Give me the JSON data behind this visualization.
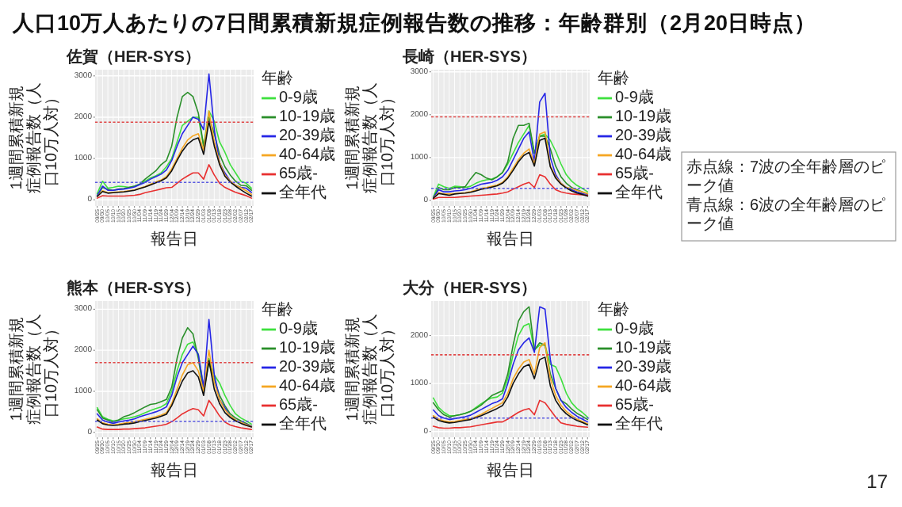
{
  "chart_data": [
    {
      "type": "line",
      "title": "佐賀（HER-SYS）",
      "xlabel": "報告日",
      "ylabel": "1週間累積新規症例報告数（人口10万人対）",
      "legend_title": "年齢",
      "legend": "right",
      "grid": true,
      "categories": [
        "09/25",
        "09/30",
        "10/05",
        "10/10",
        "10/15",
        "10/20",
        "10/25",
        "10/30",
        "11/04",
        "11/09",
        "11/14",
        "11/19",
        "11/24",
        "11/29",
        "12/04",
        "12/09",
        "12/14",
        "12/19",
        "12/24",
        "12/29",
        "01/03",
        "01/08",
        "01/13",
        "01/18",
        "01/23",
        "01/28",
        "02/02",
        "02/07",
        "02/12",
        "02/17"
      ],
      "ylim": [
        -150,
        3150
      ],
      "yticks": [
        0,
        1000,
        2000,
        3000
      ],
      "ref_lines": [
        {
          "axis": "y",
          "value": 1880,
          "color": "#e04848",
          "line_style": "dotted"
        },
        {
          "axis": "y",
          "value": 420,
          "color": "#5a5ae0",
          "line_style": "dotted"
        }
      ],
      "series": [
        {
          "name": "0-9歳",
          "color": "#3ee03e",
          "values": [
            150,
            450,
            280,
            300,
            330,
            320,
            300,
            330,
            380,
            450,
            530,
            580,
            650,
            800,
            1000,
            1400,
            1800,
            1900,
            2000,
            2000,
            1300,
            2150,
            1900,
            1400,
            1150,
            850,
            650,
            450,
            400,
            280
          ]
        },
        {
          "name": "10-19歳",
          "color": "#2a8f2a",
          "values": [
            100,
            300,
            250,
            230,
            260,
            270,
            300,
            330,
            380,
            500,
            600,
            700,
            850,
            950,
            1300,
            2000,
            2500,
            2600,
            2500,
            2100,
            1300,
            2000,
            1600,
            1100,
            800,
            600,
            450,
            350,
            340,
            230
          ]
        },
        {
          "name": "20-39歳",
          "color": "#2626e6",
          "values": [
            100,
            330,
            230,
            230,
            250,
            260,
            280,
            310,
            370,
            420,
            500,
            560,
            620,
            720,
            950,
            1300,
            1600,
            1800,
            2000,
            1950,
            1700,
            3050,
            1700,
            900,
            650,
            450,
            350,
            300,
            280,
            180
          ]
        },
        {
          "name": "40-64歳",
          "color": "#f5a623",
          "values": [
            80,
            220,
            170,
            180,
            190,
            200,
            220,
            240,
            280,
            320,
            380,
            430,
            480,
            560,
            750,
            1000,
            1250,
            1450,
            1550,
            1600,
            1200,
            2150,
            1400,
            900,
            600,
            450,
            350,
            290,
            220,
            130
          ]
        },
        {
          "name": "65歳-",
          "color": "#e83030",
          "values": [
            40,
            100,
            90,
            90,
            90,
            90,
            100,
            110,
            130,
            170,
            200,
            230,
            260,
            290,
            300,
            400,
            500,
            580,
            650,
            650,
            500,
            850,
            600,
            400,
            300,
            240,
            180,
            140,
            100,
            40
          ]
        },
        {
          "name": "全年代",
          "color": "#111111",
          "values": [
            80,
            200,
            160,
            170,
            180,
            190,
            210,
            230,
            270,
            310,
            360,
            410,
            460,
            530,
            700,
            950,
            1180,
            1350,
            1450,
            1500,
            1100,
            1900,
            1300,
            850,
            570,
            430,
            330,
            240,
            160,
            90
          ]
        }
      ]
    },
    {
      "type": "line",
      "title": "長崎（HER-SYS）",
      "xlabel": "報告日",
      "ylabel": "1週間累積新規症例報告数（人口10万人対）",
      "legend_title": "年齢",
      "legend": "right",
      "grid": true,
      "categories": [
        "09/25",
        "09/30",
        "10/05",
        "10/10",
        "10/15",
        "10/20",
        "10/25",
        "10/30",
        "11/04",
        "11/09",
        "11/14",
        "11/19",
        "11/24",
        "11/29",
        "12/04",
        "12/09",
        "12/14",
        "12/19",
        "12/24",
        "12/29",
        "01/03",
        "01/08",
        "01/13",
        "01/18",
        "01/23",
        "01/28",
        "02/02",
        "02/07",
        "02/12",
        "02/17"
      ],
      "ylim": [
        -130,
        3050
      ],
      "yticks": [
        0,
        1000,
        2000,
        3000
      ],
      "ref_lines": [
        {
          "axis": "y",
          "value": 1950,
          "color": "#e04848",
          "line_style": "dotted"
        },
        {
          "axis": "y",
          "value": 280,
          "color": "#5a5ae0",
          "line_style": "dotted"
        }
      ],
      "series": [
        {
          "name": "0-9歳",
          "color": "#3ee03e",
          "values": [
            80,
            380,
            320,
            280,
            330,
            320,
            300,
            330,
            400,
            450,
            480,
            500,
            550,
            650,
            850,
            1100,
            1350,
            1550,
            1750,
            1100,
            1500,
            1550,
            1400,
            1150,
            850,
            600,
            450,
            350,
            280,
            200
          ]
        },
        {
          "name": "10-19歳",
          "color": "#2a8f2a",
          "values": [
            50,
            300,
            250,
            250,
            300,
            300,
            320,
            500,
            650,
            600,
            520,
            480,
            550,
            650,
            900,
            1450,
            1750,
            1750,
            1800,
            1100,
            1500,
            1500,
            1200,
            800,
            550,
            400,
            300,
            250,
            200,
            150
          ]
        },
        {
          "name": "20-39歳",
          "color": "#2626e6",
          "values": [
            60,
            250,
            200,
            200,
            220,
            230,
            250,
            280,
            330,
            380,
            400,
            420,
            470,
            550,
            700,
            950,
            1200,
            1450,
            1600,
            900,
            2300,
            2500,
            1000,
            600,
            400,
            300,
            250,
            200,
            160,
            120
          ]
        },
        {
          "name": "40-64歳",
          "color": "#f5a623",
          "values": [
            50,
            180,
            150,
            150,
            160,
            170,
            180,
            200,
            240,
            280,
            300,
            330,
            360,
            420,
            550,
            750,
            950,
            1100,
            1200,
            850,
            1550,
            1600,
            800,
            550,
            400,
            300,
            280,
            230,
            200,
            160
          ]
        },
        {
          "name": "65歳-",
          "color": "#e83030",
          "values": [
            30,
            70,
            70,
            70,
            70,
            80,
            90,
            100,
            110,
            120,
            130,
            140,
            150,
            170,
            200,
            260,
            320,
            380,
            420,
            300,
            600,
            550,
            380,
            250,
            200,
            170,
            150,
            140,
            130,
            120
          ]
        },
        {
          "name": "全年代",
          "color": "#111111",
          "values": [
            50,
            160,
            140,
            120,
            150,
            160,
            170,
            190,
            220,
            260,
            280,
            310,
            340,
            400,
            520,
            700,
            900,
            1050,
            1120,
            800,
            1400,
            1450,
            780,
            520,
            380,
            290,
            220,
            170,
            140,
            100
          ]
        }
      ]
    },
    {
      "type": "line",
      "title": "熊本（HER-SYS）",
      "xlabel": "報告日",
      "ylabel": "1週間累積新規症例報告数（人口10万人対）",
      "legend_title": "年齢",
      "legend": "right",
      "grid": true,
      "categories": [
        "09/25",
        "09/30",
        "10/05",
        "10/10",
        "10/15",
        "10/20",
        "10/25",
        "10/30",
        "11/04",
        "11/09",
        "11/14",
        "11/19",
        "11/24",
        "11/29",
        "12/04",
        "12/09",
        "12/14",
        "12/19",
        "12/24",
        "12/29",
        "01/03",
        "01/08",
        "01/13",
        "01/18",
        "01/23",
        "01/28",
        "02/02",
        "02/07",
        "02/12",
        "02/17"
      ],
      "ylim": [
        -120,
        3200
      ],
      "yticks": [
        0,
        1000,
        2000,
        3000
      ],
      "ref_lines": [
        {
          "axis": "y",
          "value": 1700,
          "color": "#e04848",
          "line_style": "dotted"
        },
        {
          "axis": "y",
          "value": 265,
          "color": "#5a5ae0",
          "line_style": "dotted"
        }
      ],
      "series": [
        {
          "name": "0-9歳",
          "color": "#3ee03e",
          "values": [
            600,
            380,
            320,
            280,
            300,
            330,
            350,
            380,
            420,
            480,
            530,
            580,
            620,
            700,
            1000,
            1500,
            1900,
            2150,
            2200,
            1900,
            1100,
            1800,
            1400,
            1200,
            900,
            650,
            450,
            350,
            280,
            200
          ]
        },
        {
          "name": "10-19歳",
          "color": "#2a8f2a",
          "values": [
            550,
            350,
            300,
            250,
            300,
            380,
            420,
            480,
            550,
            620,
            680,
            700,
            750,
            800,
            1100,
            1800,
            2300,
            2550,
            2400,
            1800,
            1000,
            1700,
            1300,
            900,
            650,
            450,
            350,
            280,
            220,
            150
          ]
        },
        {
          "name": "20-39歳",
          "color": "#2626e6",
          "values": [
            450,
            300,
            250,
            220,
            250,
            280,
            300,
            330,
            380,
            420,
            460,
            500,
            550,
            620,
            900,
            1350,
            1700,
            1900,
            2100,
            1900,
            1100,
            2750,
            1400,
            800,
            600,
            400,
            300,
            240,
            200,
            150
          ]
        },
        {
          "name": "40-64歳",
          "color": "#f5a623",
          "values": [
            330,
            230,
            200,
            180,
            200,
            220,
            240,
            260,
            290,
            320,
            350,
            380,
            420,
            480,
            700,
            1050,
            1400,
            1650,
            1700,
            1500,
            1000,
            2000,
            1200,
            800,
            550,
            400,
            300,
            240,
            190,
            140
          ]
        },
        {
          "name": "65歳-",
          "color": "#e83030",
          "values": [
            130,
            80,
            70,
            70,
            70,
            80,
            80,
            90,
            100,
            110,
            130,
            150,
            170,
            200,
            260,
            350,
            450,
            520,
            580,
            550,
            400,
            780,
            600,
            400,
            250,
            180,
            140,
            110,
            90,
            70
          ]
        },
        {
          "name": "全年代",
          "color": "#111111",
          "values": [
            300,
            210,
            180,
            170,
            180,
            200,
            210,
            230,
            260,
            290,
            320,
            350,
            390,
            440,
            650,
            950,
            1250,
            1450,
            1500,
            1350,
            900,
            1750,
            1050,
            700,
            480,
            360,
            280,
            220,
            170,
            130
          ]
        }
      ]
    },
    {
      "type": "line",
      "title": "大分（HER-SYS）",
      "xlabel": "報告日",
      "ylabel": "1週間累積新規症例報告数（人口10万人対）",
      "legend_title": "年齢",
      "legend": "right",
      "grid": true,
      "categories": [
        "09/25",
        "09/30",
        "10/05",
        "10/10",
        "10/15",
        "10/20",
        "10/25",
        "10/30",
        "11/04",
        "11/09",
        "11/14",
        "11/19",
        "11/24",
        "11/29",
        "12/04",
        "12/09",
        "12/14",
        "12/19",
        "12/24",
        "12/29",
        "01/03",
        "01/08",
        "01/13",
        "01/18",
        "01/23",
        "01/28",
        "02/02",
        "02/07",
        "02/12",
        "02/17"
      ],
      "ylim": [
        -120,
        2720
      ],
      "yticks": [
        0,
        1000,
        2000
      ],
      "ref_lines": [
        {
          "axis": "y",
          "value": 1600,
          "color": "#e04848",
          "line_style": "dotted"
        },
        {
          "axis": "y",
          "value": 280,
          "color": "#5a5ae0",
          "line_style": "dotted"
        }
      ],
      "series": [
        {
          "name": "0-9歳",
          "color": "#3ee03e",
          "values": [
            700,
            500,
            400,
            330,
            330,
            350,
            380,
            420,
            500,
            580,
            650,
            700,
            720,
            800,
            1100,
            1600,
            2000,
            2200,
            2250,
            1700,
            1800,
            1800,
            1400,
            1350,
            1100,
            800,
            600,
            480,
            400,
            300
          ]
        },
        {
          "name": "10-19歳",
          "color": "#2a8f2a",
          "values": [
            600,
            450,
            350,
            300,
            330,
            350,
            380,
            420,
            480,
            550,
            650,
            750,
            800,
            850,
            1200,
            1800,
            2300,
            2500,
            2600,
            1700,
            1850,
            1800,
            1200,
            900,
            650,
            580,
            470,
            380,
            320,
            250
          ]
        },
        {
          "name": "20-39歳",
          "color": "#2626e6",
          "values": [
            450,
            330,
            280,
            250,
            270,
            290,
            310,
            340,
            400,
            460,
            520,
            580,
            620,
            680,
            1000,
            1400,
            1700,
            1850,
            1950,
            1650,
            2600,
            2550,
            1500,
            900,
            650,
            500,
            400,
            320,
            260,
            200
          ]
        },
        {
          "name": "40-64歳",
          "color": "#f5a623",
          "values": [
            330,
            260,
            220,
            200,
            210,
            230,
            250,
            270,
            310,
            360,
            420,
            480,
            540,
            600,
            800,
            1100,
            1300,
            1450,
            1500,
            1200,
            1750,
            1850,
            1100,
            750,
            550,
            420,
            330,
            260,
            210,
            160
          ]
        },
        {
          "name": "65歳-",
          "color": "#e83030",
          "values": [
            110,
            80,
            70,
            70,
            80,
            80,
            90,
            100,
            120,
            140,
            160,
            180,
            200,
            200,
            260,
            330,
            400,
            450,
            480,
            350,
            650,
            600,
            450,
            300,
            180,
            150,
            130,
            110,
            100,
            90
          ]
        },
        {
          "name": "全年代",
          "color": "#111111",
          "values": [
            300,
            230,
            200,
            180,
            190,
            210,
            230,
            250,
            290,
            330,
            380,
            430,
            480,
            540,
            720,
            1000,
            1200,
            1350,
            1400,
            1100,
            1500,
            1550,
            950,
            650,
            480,
            370,
            290,
            230,
            190,
            140
          ]
        }
      ]
    },
    {
      "type": "other",
      "title": "人口10万人あたりの7日間累積新規症例報告数の推移：年齢群別（2月20日時点）",
      "annotations": [
        "赤点線：7波の全年齢層のピーク値",
        "青点線：6波の全年齢層のピーク値",
        "17"
      ]
    }
  ]
}
